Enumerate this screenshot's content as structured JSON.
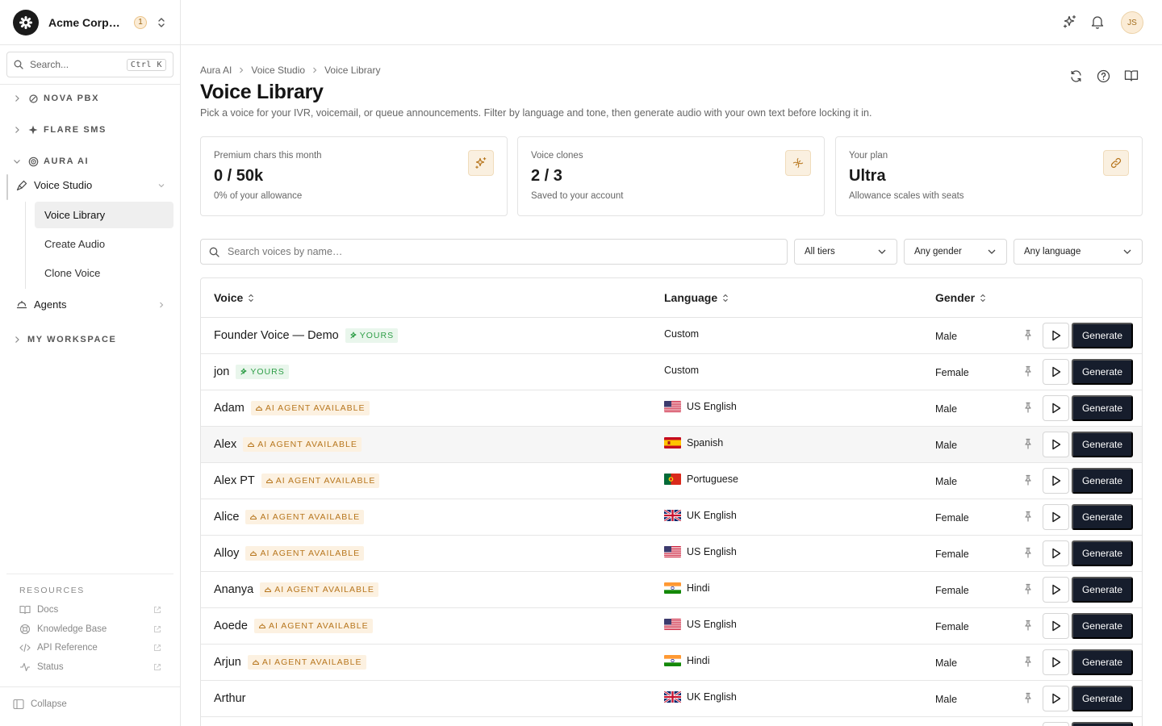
{
  "org": {
    "name": "Acme Corporation",
    "badge": "1"
  },
  "sidebar": {
    "search_placeholder": "Search...",
    "search_shortcut": "Ctrl K",
    "groups": [
      {
        "label": "NOVA PBX",
        "icon": "phone-icon",
        "expanded": false
      },
      {
        "label": "FLARE SMS",
        "icon": "sparkle-icon",
        "expanded": false
      },
      {
        "label": "AURA AI",
        "icon": "target-icon",
        "expanded": true
      },
      {
        "label": "MY WORKSPACE",
        "icon": "",
        "expanded": false
      }
    ],
    "voice_studio": "Voice Studio",
    "sub_items": [
      "Voice Library",
      "Create Audio",
      "Clone Voice"
    ],
    "agents": "Agents",
    "resources_title": "RESOURCES",
    "resources": [
      "Docs",
      "Knowledge Base",
      "API Reference",
      "Status"
    ],
    "collapse": "Collapse"
  },
  "topbar": {
    "avatar": "JS"
  },
  "breadcrumb": [
    "Aura AI",
    "Voice Studio",
    "Voice Library"
  ],
  "page": {
    "title": "Voice Library",
    "description": "Pick a voice for your IVR, voicemail, or queue announcements. Filter by language and tone, then generate audio with your own text before locking it in."
  },
  "cards": [
    {
      "label": "Premium chars this month",
      "value": "0 / 50k",
      "sub": "0% of your allowance",
      "icon": "sparkles-icon"
    },
    {
      "label": "Voice clones",
      "value": "2 / 3",
      "sub": "Saved to your account",
      "icon": "dna-icon"
    },
    {
      "label": "Your plan",
      "value": "Ultra",
      "sub": "Allowance scales with seats",
      "icon": "link-icon"
    }
  ],
  "filters": {
    "search_placeholder": "Search voices by name…",
    "tier": "All tiers",
    "gender": "Any gender",
    "language": "Any language"
  },
  "table": {
    "headers": {
      "voice": "Voice",
      "language": "Language",
      "gender": "Gender"
    },
    "generate_label": "Generate",
    "rows": [
      {
        "name": "Founder Voice — Demo",
        "badge": "YOURS",
        "badge_type": "yours",
        "language": "Custom",
        "flag": "",
        "gender": "Male"
      },
      {
        "name": "jon",
        "badge": "YOURS",
        "badge_type": "yours",
        "language": "Custom",
        "flag": "",
        "gender": "Female"
      },
      {
        "name": "Adam",
        "badge": "AI AGENT AVAILABLE",
        "badge_type": "agent",
        "language": "US English",
        "flag": "us",
        "gender": "Male"
      },
      {
        "name": "Alex",
        "badge": "AI AGENT AVAILABLE",
        "badge_type": "agent",
        "language": "Spanish",
        "flag": "es",
        "gender": "Male",
        "highlighted": true
      },
      {
        "name": "Alex PT",
        "badge": "AI AGENT AVAILABLE",
        "badge_type": "agent",
        "language": "Portuguese",
        "flag": "pt",
        "gender": "Male"
      },
      {
        "name": "Alice",
        "badge": "AI AGENT AVAILABLE",
        "badge_type": "agent",
        "language": "UK English",
        "flag": "gb",
        "gender": "Female"
      },
      {
        "name": "Alloy",
        "badge": "AI AGENT AVAILABLE",
        "badge_type": "agent",
        "language": "US English",
        "flag": "us",
        "gender": "Female"
      },
      {
        "name": "Ananya",
        "badge": "AI AGENT AVAILABLE",
        "badge_type": "agent",
        "language": "Hindi",
        "flag": "in",
        "gender": "Female"
      },
      {
        "name": "Aoede",
        "badge": "AI AGENT AVAILABLE",
        "badge_type": "agent",
        "language": "US English",
        "flag": "us",
        "gender": "Female"
      },
      {
        "name": "Arjun",
        "badge": "AI AGENT AVAILABLE",
        "badge_type": "agent",
        "language": "Hindi",
        "flag": "in",
        "gender": "Male"
      },
      {
        "name": "Arthur",
        "badge": "",
        "badge_type": "",
        "language": "UK English",
        "flag": "gb",
        "gender": "Male"
      },
      {
        "name": "",
        "badge": "",
        "badge_type": "",
        "language": "",
        "flag": "",
        "gender": ""
      }
    ]
  },
  "colors": {
    "accent": "#b7761d",
    "primary_button": "#161d2c",
    "yours": "#2e9e47"
  }
}
